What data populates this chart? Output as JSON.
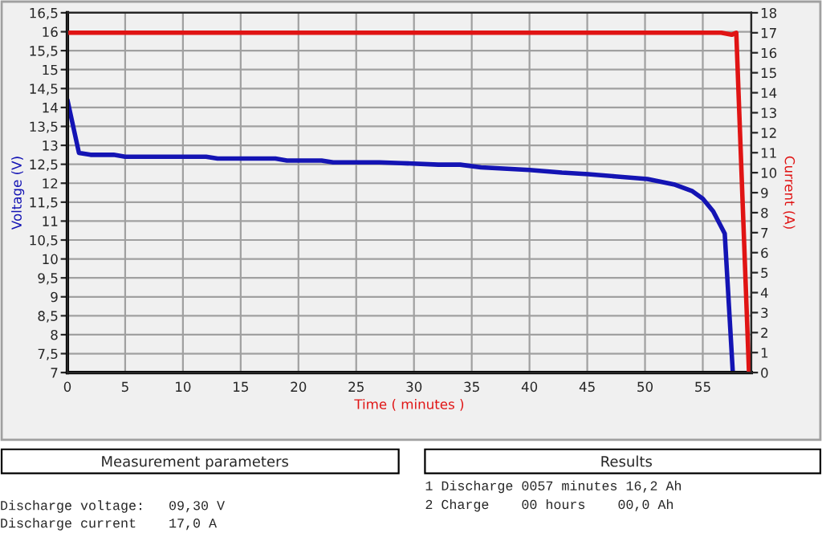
{
  "chart_data": {
    "type": "line",
    "xlabel": "Time ( minutes )",
    "ylabel": "Voltage (V)",
    "y2label": "Current (A)",
    "xlim": [
      0,
      59.2
    ],
    "xticks": [
      0,
      5,
      10,
      15,
      20,
      25,
      30,
      35,
      40,
      45,
      50,
      55
    ],
    "ylim": [
      7,
      16.5
    ],
    "yticks": [
      7,
      {
        "value": 7.5,
        "label": "7,5"
      },
      8,
      {
        "value": 8.5,
        "label": "8,5"
      },
      9,
      {
        "value": 9.5,
        "label": "9,5"
      },
      10,
      {
        "value": 10.5,
        "label": "10,5"
      },
      11,
      {
        "value": 11.5,
        "label": "11,5"
      },
      12,
      {
        "value": 12.5,
        "label": "12,5"
      },
      13,
      {
        "value": 13.5,
        "label": "13,5"
      },
      14,
      {
        "value": 14.5,
        "label": "14,5"
      },
      15,
      {
        "value": 15.5,
        "label": "15,5"
      },
      16,
      {
        "value": 16.5,
        "label": "16,5"
      }
    ],
    "y2lim": [
      0,
      18
    ],
    "y2ticks": [
      0,
      1,
      2,
      3,
      4,
      5,
      6,
      7,
      8,
      9,
      10,
      11,
      12,
      13,
      14,
      15,
      16,
      17,
      18
    ],
    "grid": true,
    "marker": "none",
    "line_style": "solid",
    "series": [
      {
        "color": "#1414b4",
        "x": [
          0,
          1,
          2,
          4,
          5,
          12,
          13,
          18,
          19,
          22,
          23,
          27,
          28.9,
          32.1,
          34,
          35.8,
          40,
          42.8,
          45.1,
          47.4,
          50.2,
          52.5,
          54.1,
          55,
          55.9,
          56.9,
          57.6
        ],
        "values": [
          14.2,
          12.8,
          12.75,
          12.75,
          12.7,
          12.7,
          12.65,
          12.65,
          12.6,
          12.6,
          12.55,
          12.55,
          12.53,
          12.49,
          12.49,
          12.42,
          12.35,
          12.28,
          12.24,
          12.18,
          12.11,
          11.97,
          11.79,
          11.59,
          11.26,
          10.67,
          7
        ]
      },
      {
        "color": "#e01414",
        "axis": "y2",
        "x": [
          0,
          56.6,
          57.5,
          57.9,
          59
        ],
        "values": [
          17,
          17,
          16.9,
          17,
          0
        ]
      }
    ],
    "annotations": [
      "Measurement parameters",
      "Results",
      "Discharge voltage:   09,30 V",
      "Discharge current    17,0 A",
      "1 Discharge 0057 minutes 16,2 Ah",
      "2 Charge    00 hours    00,0 Ah"
    ]
  }
}
